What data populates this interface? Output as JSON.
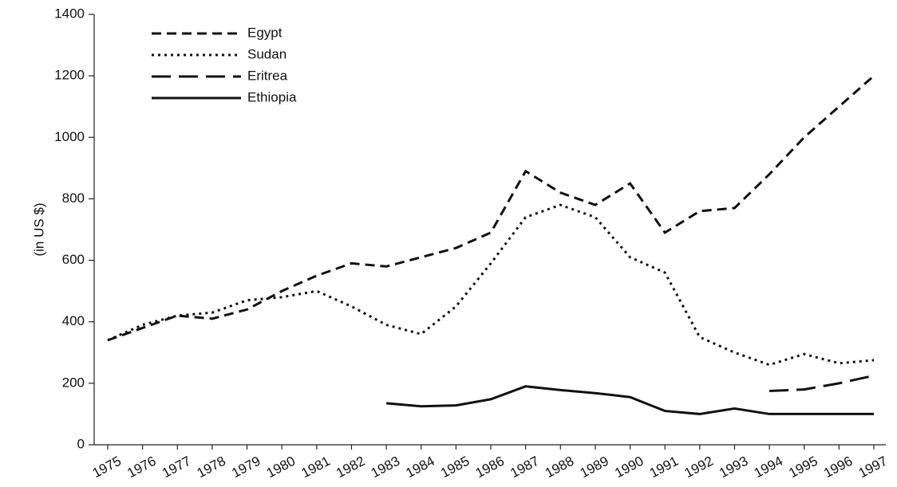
{
  "chart_data": {
    "type": "line",
    "y_label": "(in US $)",
    "categories": [
      "1975",
      "1976",
      "1977",
      "1978",
      "1979",
      "1980",
      "1981",
      "1982",
      "1983",
      "1984",
      "1985",
      "1986",
      "1987",
      "1988",
      "1989",
      "1990",
      "1991",
      "1992",
      "1993",
      "1994",
      "1995",
      "1996",
      "1997"
    ],
    "ylim": [
      0,
      1400
    ],
    "yticks": [
      0,
      200,
      400,
      600,
      800,
      1000,
      1200,
      1400
    ],
    "legend": "upper left",
    "grid": false,
    "series": [
      {
        "name": "Egypt",
        "color": "#111111",
        "dash": "short",
        "values": [
          340,
          380,
          420,
          410,
          440,
          500,
          550,
          590,
          580,
          610,
          640,
          690,
          890,
          820,
          780,
          850,
          690,
          760,
          770,
          880,
          1000,
          1100,
          1200
        ]
      },
      {
        "name": "Sudan",
        "color": "#111111",
        "dash": "dotted",
        "values": [
          340,
          390,
          420,
          430,
          470,
          480,
          500,
          450,
          390,
          360,
          450,
          590,
          740,
          780,
          740,
          610,
          560,
          350,
          300,
          260,
          295,
          265,
          275
        ]
      },
      {
        "name": "Eritrea",
        "color": "#111111",
        "dash": "long",
        "values": [
          null,
          null,
          null,
          null,
          null,
          null,
          null,
          null,
          null,
          null,
          null,
          null,
          null,
          null,
          null,
          null,
          null,
          null,
          null,
          175,
          180,
          200,
          225
        ]
      },
      {
        "name": "Ethiopia",
        "color": "#111111",
        "dash": "solid",
        "values": [
          null,
          null,
          null,
          null,
          null,
          null,
          null,
          null,
          135,
          125,
          128,
          148,
          190,
          178,
          168,
          155,
          110,
          100,
          118,
          100,
          100,
          100,
          100
        ]
      }
    ]
  }
}
